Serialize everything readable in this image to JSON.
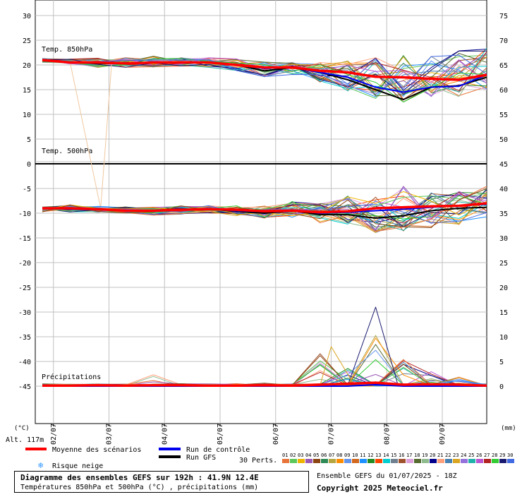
{
  "chart_data": {
    "type": "line",
    "title": "Diagramme des ensembles GEFS sur 192h : 41.9N 12.4E",
    "subtitle": "Températures 850hPa et 500hPa (°C) , précipitations (mm)",
    "run_info": "Ensemble GEFS du 01/07/2025 - 18Z",
    "copyright": "Copyright 2025 Meteociel.fr",
    "altitude_label": "Alt. 117m",
    "left_unit": "(°C)",
    "right_unit": "(mm)",
    "left_ticks": [
      "30",
      "25",
      "20",
      "15",
      "10",
      "5",
      "0",
      "-5",
      "-10",
      "-15",
      "-20",
      "-25",
      "-30",
      "-35",
      "-40",
      "-45"
    ],
    "right_ticks": [
      "75",
      "70",
      "65",
      "60",
      "55",
      "50",
      "45",
      "40",
      "35",
      "30",
      "25",
      "20",
      "15",
      "10",
      "5",
      "0"
    ],
    "x_labels": [
      "02/07",
      "03/07",
      "04/07",
      "05/07",
      "06/07",
      "07/07",
      "08/07",
      "09/07"
    ],
    "panel_labels": {
      "t850": "Temp. 850hPa",
      "t500": "Temp. 500hPa",
      "precip": "Précipitations"
    },
    "legend": {
      "mean": "Moyenne des scénarios",
      "control": "Run de contrôle",
      "gfs": "Run GFS",
      "snow": "Risque neige",
      "perts": "30 Perts.",
      "pert_numbers": [
        "01",
        "02",
        "03",
        "04",
        "05",
        "06",
        "07",
        "08",
        "09",
        "10",
        "11",
        "12",
        "13",
        "14",
        "15",
        "16",
        "17",
        "18",
        "19",
        "20",
        "21",
        "22",
        "23",
        "24",
        "25",
        "26",
        "27",
        "28",
        "29",
        "30"
      ]
    },
    "colors": {
      "mean": "#ff0000",
      "control": "#0000ee",
      "gfs": "#000000",
      "grid": "#c0c0c0",
      "perts": [
        "#e8743b",
        "#5cc85c",
        "#f0b400",
        "#9b59b6",
        "#8b4513",
        "#2e8b57",
        "#b5a642",
        "#ff8c00",
        "#6495ed",
        "#d2691e",
        "#1e90ff",
        "#228b22",
        "#ff4500",
        "#00ced1",
        "#708090",
        "#a0522d",
        "#dda0dd",
        "#556b2f",
        "#8fbc8f",
        "#00008b",
        "#ffa07a",
        "#4682b4",
        "#daa520",
        "#9370db",
        "#20b2aa",
        "#ba55d3",
        "#b22222",
        "#32cd32",
        "#191970",
        "#4169e1"
      ]
    },
    "x": [
      0,
      0.5,
      1,
      1.5,
      2,
      2.5,
      3,
      3.5,
      4,
      4.5,
      5,
      5.5,
      6,
      6.5,
      7,
      7.5,
      8
    ],
    "t850": {
      "mean": [
        21,
        20.5,
        20.5,
        20.3,
        20.5,
        20.5,
        20.5,
        20,
        19.5,
        19.5,
        18.8,
        18.5,
        17.6,
        17.5,
        17.2,
        17,
        18
      ],
      "control": [
        21,
        20.5,
        20.5,
        20.3,
        20.5,
        20.6,
        20.5,
        20,
        19.3,
        19.5,
        18.5,
        17.5,
        15.5,
        14.5,
        15.5,
        15.7,
        18
      ],
      "gfs": [
        21,
        20.5,
        20.3,
        20.3,
        20.5,
        20.5,
        20.5,
        20,
        18.8,
        19.5,
        18.5,
        17,
        15,
        13,
        15.5,
        15.8,
        17.5
      ],
      "spread_min": [
        20.5,
        20.2,
        19.5,
        19.5,
        19.5,
        19.8,
        19.5,
        18.8,
        17.5,
        18,
        16.5,
        14.5,
        13,
        12.5,
        13,
        13.5,
        15
      ],
      "spread_max": [
        21.3,
        21.2,
        21.5,
        21.5,
        21.8,
        21.5,
        21.6,
        21.3,
        20.8,
        20.5,
        20.5,
        21,
        21.5,
        22,
        22.5,
        23,
        23.5
      ]
    },
    "t500": {
      "mean": [
        -9,
        -9,
        -9.2,
        -9.5,
        -9.5,
        -9.3,
        -9.2,
        -9.3,
        -9.6,
        -9.5,
        -9.8,
        -9.6,
        -9,
        -8.8,
        -8.6,
        -8.5,
        -8
      ],
      "control": [
        -9,
        -9.2,
        -9.3,
        -9.4,
        -9.5,
        -9.3,
        -9.2,
        -9.5,
        -9.7,
        -9.4,
        -10,
        -9.8,
        -9.5,
        -9.2,
        -8.8,
        -8.5,
        -8.2
      ],
      "gfs": [
        -9,
        -9.2,
        -9.3,
        -9.5,
        -9.6,
        -9.3,
        -9.2,
        -9.6,
        -10,
        -9.5,
        -10.3,
        -10.3,
        -11,
        -10.5,
        -9.5,
        -9,
        -8.8
      ],
      "spread_min": [
        -9.8,
        -9.8,
        -10,
        -10,
        -10.4,
        -10.2,
        -10,
        -10.5,
        -11,
        -10.8,
        -12,
        -12.5,
        -14,
        -14,
        -13,
        -12.5,
        -11
      ],
      "spread_max": [
        -8.5,
        -8.2,
        -8.5,
        -8.6,
        -8.8,
        -8.5,
        -8.4,
        -8.5,
        -8.4,
        -7.5,
        -7.8,
        -6.5,
        -5.5,
        -4.5,
        -5,
        -5.5,
        -4.5
      ]
    },
    "precip": {
      "mean": [
        0.1,
        0.1,
        0.2,
        0.1,
        0.2,
        0.2,
        0.1,
        0.1,
        0.2,
        0.1,
        0.3,
        0.5,
        0.7,
        0.3,
        0.4,
        0.3,
        0.1
      ],
      "control": [
        0,
        0,
        0,
        0,
        0,
        0,
        0,
        0,
        0,
        0,
        0,
        0,
        0.3,
        0,
        0,
        0,
        0
      ],
      "gfs": [
        0,
        0,
        0,
        0,
        0,
        0,
        0,
        0,
        0,
        0,
        0.1,
        0.5,
        0.8,
        0.2,
        0.3,
        0,
        0
      ],
      "max": [
        0.5,
        0.3,
        0.5,
        0.3,
        2.5,
        0.5,
        0.5,
        0.5,
        0.8,
        0.5,
        8,
        4,
        16,
        6,
        3,
        2.5,
        0.5
      ]
    },
    "outlier_t850_member_at_03_07": -9
  }
}
